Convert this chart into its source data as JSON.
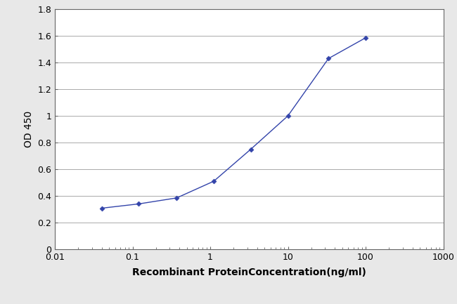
{
  "x_values": [
    0.04,
    0.12,
    0.37,
    1.11,
    3.33,
    10.0,
    33.3,
    100.0
  ],
  "y_values": [
    0.308,
    0.34,
    0.385,
    0.51,
    0.75,
    1.0,
    1.43,
    1.585
  ],
  "line_color": "#3344aa",
  "marker_style": "D",
  "marker_size": 3.5,
  "line_width": 1.0,
  "xlabel": "Recombinant ProteinConcentration(ng/ml)",
  "ylabel": "OD 450",
  "xlim_left": 0.01,
  "xlim_right": 1000,
  "ylim_bottom": 0,
  "ylim_top": 1.8,
  "yticks": [
    0,
    0.2,
    0.4,
    0.6,
    0.8,
    1.0,
    1.2,
    1.4,
    1.6,
    1.8
  ],
  "ytick_labels": [
    "0",
    "0.2",
    "0.4",
    "0.6",
    "0.8",
    "1",
    "1.2",
    "1.4",
    "1.6",
    "1.8"
  ],
  "xtick_labels": [
    "0.01",
    "0.1",
    "1",
    "10",
    "100",
    "1000"
  ],
  "xlabel_fontsize": 10,
  "ylabel_fontsize": 10,
  "tick_fontsize": 9,
  "background_color": "#e8e8e8",
  "plot_bg_color": "#ffffff",
  "grid_color": "#aaaaaa",
  "grid_linewidth": 0.7,
  "linestyle": "-"
}
